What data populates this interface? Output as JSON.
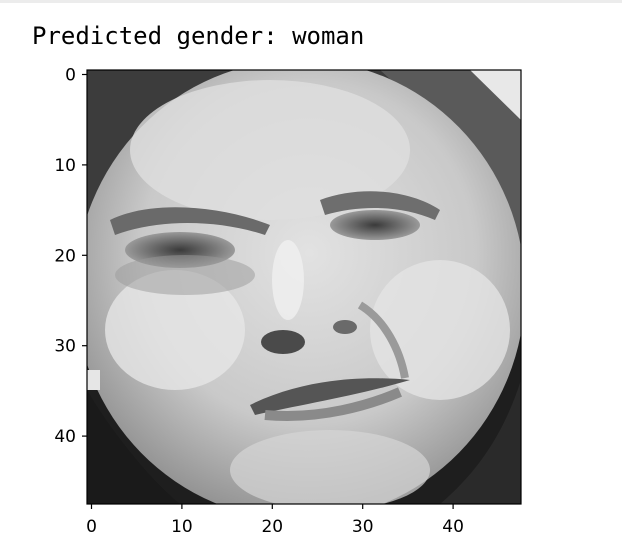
{
  "output": {
    "text": "Predicted gender: woman"
  },
  "image_plot": {
    "content": "grayscale-face-image",
    "colormap": "gray",
    "grid": false,
    "x_axis": {
      "range": [
        -0.5,
        47.5
      ],
      "ticks": [
        "0",
        "10",
        "20",
        "30",
        "40"
      ]
    },
    "y_axis": {
      "range": [
        47.5,
        -0.5
      ],
      "inverted": true,
      "ticks": [
        "0",
        "10",
        "20",
        "30",
        "40"
      ]
    }
  }
}
